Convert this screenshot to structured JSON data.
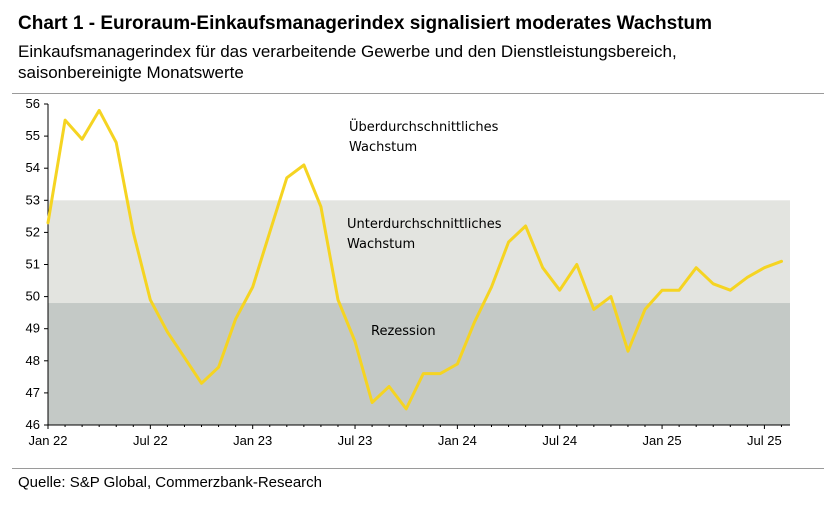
{
  "header": {
    "title": "Chart 1 - Euroraum-Einkaufsmanagerindex signalisiert moderates Wachstum",
    "subtitle_line1": "Einkaufsmanagerindex für das verarbeitende Gewerbe und den Dienstleistungsbereich,",
    "subtitle_line2": "saisonbereinigte Monatswerte"
  },
  "footer": {
    "source": "Quelle: S&P Global, Commerzbank-Research"
  },
  "colors": {
    "line": "#F5D422",
    "zone_upper": "#E3E4E0",
    "zone_lower": "#C4C9C6",
    "axis": "#000000"
  },
  "chart_data": {
    "type": "line",
    "title": "Chart 1 - Euroraum-Einkaufsmanagerindex signalisiert moderates Wachstum",
    "subtitle": "Einkaufsmanagerindex für das verarbeitende Gewerbe und den Dienstleistungsbereich, saisonbereinigte Monatswerte",
    "xlabel": "",
    "ylabel": "",
    "ylim": [
      46,
      56
    ],
    "yticks": [
      46,
      47,
      48,
      49,
      50,
      51,
      52,
      53,
      54,
      55,
      56
    ],
    "xticks": [
      "Jan 22",
      "Jul 22",
      "Jan 23",
      "Jul 23",
      "Jan 24",
      "Jul 24",
      "Jan 25",
      "Jul 25"
    ],
    "grid": false,
    "bands": [
      {
        "from": 49.8,
        "to": 53.0,
        "label_line1": "Unterdurchschnittliches",
        "label_line2": "Wachstum"
      },
      {
        "from": 46.0,
        "to": 49.8,
        "label_line1": "Rezession",
        "label_line2": ""
      }
    ],
    "top_zone_label_line1": "Überdurchschnittliches",
    "top_zone_label_line2": "Wachstum",
    "series": [
      {
        "x": [
          "2022-01",
          "2022-02",
          "2022-03",
          "2022-04",
          "2022-05",
          "2022-06",
          "2022-07",
          "2022-08",
          "2022-09",
          "2022-10",
          "2022-11",
          "2022-12",
          "2023-01",
          "2023-02",
          "2023-03",
          "2023-04",
          "2023-05",
          "2023-06",
          "2023-07",
          "2023-08",
          "2023-09",
          "2023-10",
          "2023-11",
          "2023-12",
          "2024-01",
          "2024-02",
          "2024-03",
          "2024-04",
          "2024-05",
          "2024-06",
          "2024-07",
          "2024-08",
          "2024-09",
          "2024-10",
          "2024-11",
          "2024-12",
          "2025-01",
          "2025-02",
          "2025-03",
          "2025-04",
          "2025-05",
          "2025-06",
          "2025-07",
          "2025-08"
        ],
        "values": [
          52.3,
          55.5,
          54.9,
          55.8,
          54.8,
          52.0,
          49.9,
          48.9,
          48.1,
          47.3,
          47.8,
          49.3,
          50.3,
          52.0,
          53.7,
          54.1,
          52.8,
          49.9,
          48.6,
          46.7,
          47.2,
          46.5,
          47.6,
          47.6,
          47.9,
          49.2,
          50.3,
          51.7,
          52.2,
          50.9,
          50.2,
          51.0,
          49.6,
          50.0,
          48.3,
          49.6,
          50.2,
          50.2,
          50.9,
          50.4,
          50.2,
          50.6,
          50.9,
          51.1
        ]
      }
    ]
  }
}
